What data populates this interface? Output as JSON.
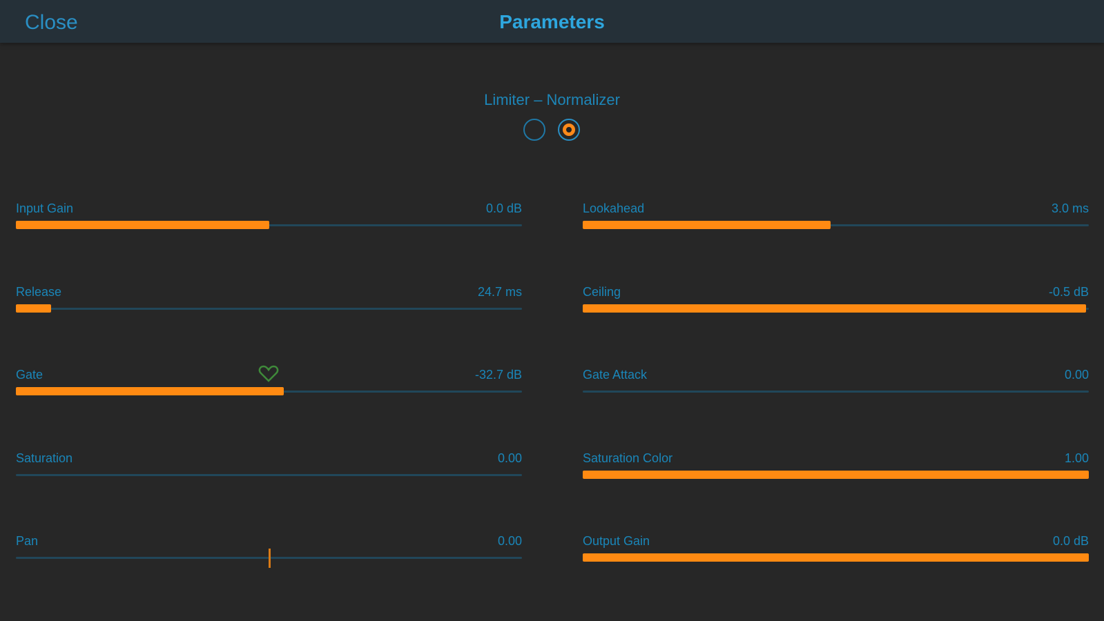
{
  "header": {
    "close_label": "Close",
    "title": "Parameters"
  },
  "mode": {
    "title": "Limiter – Normalizer",
    "options_count": 2,
    "selected_index": 1
  },
  "colors": {
    "accent": "#ff8a12",
    "label": "#1a86b9",
    "track": "#21475a",
    "background": "#272727",
    "header": "#253038"
  },
  "parameters": {
    "left": [
      {
        "label": "Input Gain",
        "value": "0.0 dB",
        "fill": 0.5
      },
      {
        "label": "Release",
        "value": "24.7 ms",
        "fill": 0.07
      },
      {
        "label": "Gate",
        "value": "-32.7 dB",
        "fill": 0.53,
        "icon": "heart-icon"
      },
      {
        "label": "Saturation",
        "value": "0.00",
        "fill": 0.0
      },
      {
        "label": "Pan",
        "value": "0.00",
        "fill": 0.5,
        "style": "center-tick"
      }
    ],
    "right": [
      {
        "label": "Lookahead",
        "value": "3.0 ms",
        "fill": 0.49
      },
      {
        "label": "Ceiling",
        "value": "-0.5 dB",
        "fill": 0.995
      },
      {
        "label": "Gate Attack",
        "value": "0.00",
        "fill": 0.0
      },
      {
        "label": "Saturation Color",
        "value": "1.00",
        "fill": 1.0
      },
      {
        "label": "Output Gain",
        "value": "0.0 dB",
        "fill": 1.0
      }
    ]
  }
}
